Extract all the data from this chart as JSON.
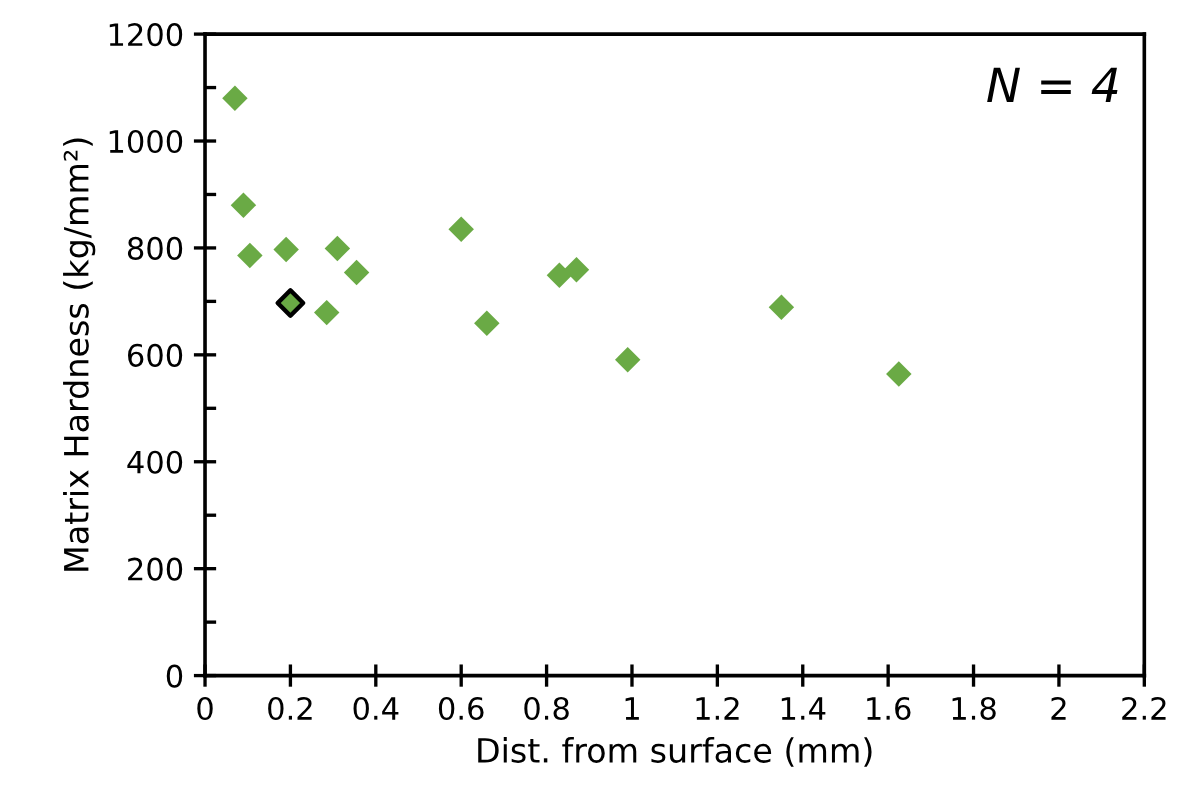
{
  "chart_data": {
    "type": "scatter",
    "xlabel": "Dist. from surface (mm)",
    "ylabel": "Matrix Hardness (kg/mm²)",
    "annotations": [
      "N = 4"
    ],
    "series": [
      {
        "color": "#6aaa45",
        "x": [
          0.07,
          0.09,
          0.105,
          0.19,
          0.31,
          0.355,
          0.285,
          0.6,
          0.66,
          0.83,
          0.87,
          0.99,
          1.35,
          1.625
        ],
        "values": [
          1080,
          880,
          786,
          797,
          799,
          754,
          679,
          835,
          659,
          749,
          759,
          591,
          689,
          564
        ]
      },
      {
        "color": "#6aaa45",
        "x": [
          0.2
        ],
        "values": [
          697
        ]
      }
    ],
    "marker": "diamond",
    "grid": false,
    "legend": false,
    "xlim": [
      0,
      2.2
    ],
    "xticks": [
      0,
      0.2,
      0.4,
      0.6,
      0.8,
      1,
      1.2,
      1.4,
      1.6,
      1.8,
      2,
      2.2
    ],
    "ylim": [
      0,
      1200
    ],
    "yticks": [
      0,
      200,
      400,
      600,
      800,
      1000,
      1200
    ]
  }
}
